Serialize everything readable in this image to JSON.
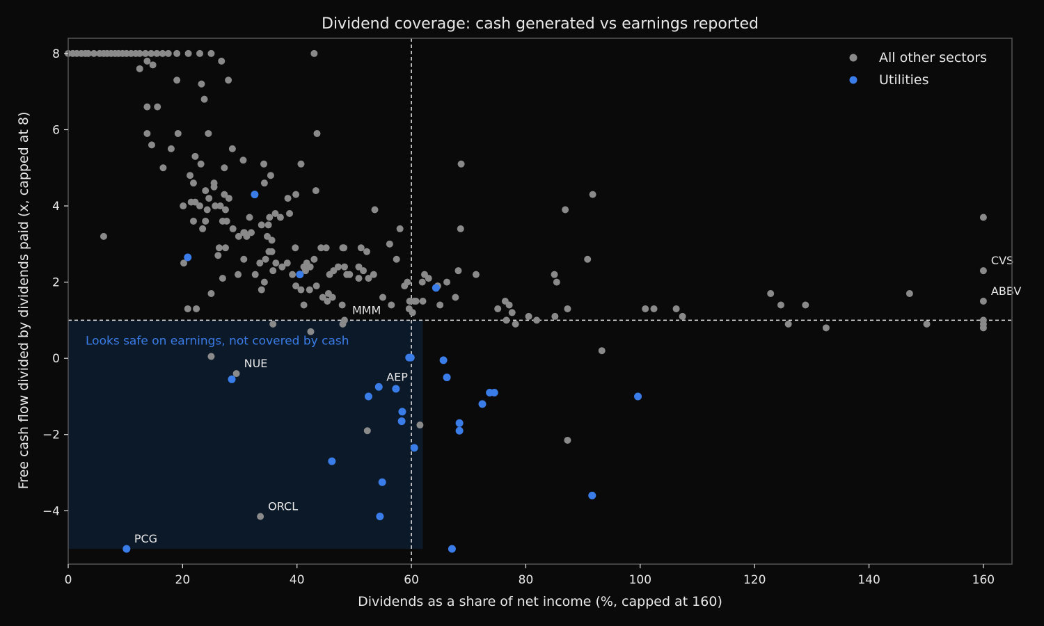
{
  "chart_data": {
    "type": "scatter",
    "title": "Dividend coverage: cash generated vs earnings reported",
    "xlabel": "Dividends as a share of net income (%, capped at 160)",
    "ylabel": "Free cash flow divided by dividends paid (x, capped at 8)",
    "xlim": [
      0,
      165
    ],
    "ylim": [
      -5.4,
      8.4
    ],
    "xticks": [
      0,
      20,
      40,
      60,
      80,
      100,
      120,
      140,
      160
    ],
    "yticks": [
      -4,
      -2,
      0,
      2,
      4,
      6,
      8
    ],
    "grid": false,
    "legend_position": "top-right",
    "reference_lines": {
      "x": 60,
      "y": 1
    },
    "highlight_zone": {
      "x": [
        0,
        62
      ],
      "y": [
        -5,
        1
      ],
      "label": "Looks safe on earnings, not covered by cash"
    },
    "colors": {
      "background": "#0a0a0a",
      "other": "#8a8a8a",
      "utilities": "#3b7de8",
      "zone": "#0d1a2b",
      "text": "#e8e8e8"
    },
    "series": [
      {
        "name": "All other sectors",
        "color": "#8a8a8a",
        "points": [
          [
            0,
            8
          ],
          [
            0.8,
            8
          ],
          [
            1.5,
            8
          ],
          [
            2.3,
            8
          ],
          [
            3,
            8
          ],
          [
            3.5,
            8
          ],
          [
            4.5,
            8
          ],
          [
            5.5,
            8
          ],
          [
            6.2,
            8
          ],
          [
            6.8,
            8
          ],
          [
            7.5,
            8
          ],
          [
            8.2,
            8
          ],
          [
            8.8,
            8
          ],
          [
            9.5,
            8
          ],
          [
            10.2,
            8
          ],
          [
            11,
            8
          ],
          [
            11.8,
            8
          ],
          [
            12.5,
            8
          ],
          [
            13.5,
            8
          ],
          [
            14.5,
            8
          ],
          [
            15.5,
            8
          ],
          [
            16.5,
            8
          ],
          [
            17.5,
            8
          ],
          [
            19,
            8
          ],
          [
            21,
            8
          ],
          [
            23,
            8
          ],
          [
            25,
            8
          ],
          [
            43,
            8
          ],
          [
            12.5,
            7.6
          ],
          [
            13.8,
            7.8
          ],
          [
            14.8,
            7.7
          ],
          [
            19,
            7.3
          ],
          [
            23.3,
            7.2
          ],
          [
            26.8,
            7.8
          ],
          [
            28,
            7.3
          ],
          [
            13.8,
            6.6
          ],
          [
            15.6,
            6.6
          ],
          [
            23.8,
            6.8
          ],
          [
            13.8,
            5.9
          ],
          [
            14.6,
            5.6
          ],
          [
            19.2,
            5.9
          ],
          [
            24.5,
            5.9
          ],
          [
            43.5,
            5.9
          ],
          [
            16.6,
            5
          ],
          [
            18,
            5.5
          ],
          [
            22.2,
            5.3
          ],
          [
            23.2,
            5.1
          ],
          [
            21.3,
            4.8
          ],
          [
            28.7,
            5.5
          ],
          [
            27.3,
            5
          ],
          [
            30.6,
            5.2
          ],
          [
            34.2,
            5.1
          ],
          [
            35.4,
            4.8
          ],
          [
            40.7,
            5.1
          ],
          [
            68.7,
            5.1
          ],
          [
            21.9,
            4.6
          ],
          [
            24,
            4.4
          ],
          [
            25.5,
            4.6
          ],
          [
            25.5,
            4.5
          ],
          [
            27.3,
            4.3
          ],
          [
            34.3,
            4.6
          ],
          [
            39.8,
            4.3
          ],
          [
            43.3,
            4.4
          ],
          [
            20.1,
            4
          ],
          [
            21.5,
            4.1
          ],
          [
            22.2,
            4.1
          ],
          [
            23,
            4
          ],
          [
            24.3,
            3.9
          ],
          [
            24.6,
            4.2
          ],
          [
            25.7,
            4
          ],
          [
            26.6,
            4
          ],
          [
            27.5,
            3.9
          ],
          [
            28.1,
            4.2
          ],
          [
            38.4,
            4.2
          ],
          [
            53.6,
            3.9
          ],
          [
            86.9,
            3.9
          ],
          [
            91.7,
            4.3
          ],
          [
            21.9,
            3.6
          ],
          [
            23.5,
            3.4
          ],
          [
            24,
            3.6
          ],
          [
            27,
            3.6
          ],
          [
            27.7,
            3.6
          ],
          [
            28.8,
            3.4
          ],
          [
            30.7,
            3.3
          ],
          [
            31.7,
            3.7
          ],
          [
            33.8,
            3.5
          ],
          [
            35,
            3.5
          ],
          [
            35.2,
            3.7
          ],
          [
            36.2,
            3.8
          ],
          [
            37.1,
            3.7
          ],
          [
            38.7,
            3.8
          ],
          [
            31.2,
            3.2
          ],
          [
            34.8,
            3.2
          ],
          [
            32,
            3.3
          ],
          [
            35.6,
            3.1
          ],
          [
            58,
            3.4
          ],
          [
            68.6,
            3.4
          ],
          [
            160,
            3.7
          ],
          [
            6.2,
            3.2
          ],
          [
            20.2,
            2.5
          ],
          [
            26.4,
            2.9
          ],
          [
            26.2,
            2.7
          ],
          [
            27.5,
            2.9
          ],
          [
            29.8,
            3.2
          ],
          [
            30.8,
            3.3
          ],
          [
            35.1,
            2.8
          ],
          [
            35.6,
            2.8
          ],
          [
            39.7,
            2.9
          ],
          [
            44.2,
            2.9
          ],
          [
            45.1,
            2.9
          ],
          [
            48,
            2.9
          ],
          [
            48.2,
            2.9
          ],
          [
            51.2,
            2.9
          ],
          [
            52.2,
            2.8
          ],
          [
            55,
            1.6
          ],
          [
            56.2,
            3
          ],
          [
            57.4,
            2.6
          ],
          [
            30.7,
            2.6
          ],
          [
            34.5,
            2.6
          ],
          [
            33.5,
            2.5
          ],
          [
            36.3,
            2.5
          ],
          [
            37.4,
            2.4
          ],
          [
            38.3,
            2.5
          ],
          [
            41.2,
            2.4
          ],
          [
            41.7,
            2.5
          ],
          [
            42.3,
            2.4
          ],
          [
            43,
            2.6
          ],
          [
            46.4,
            2.3
          ],
          [
            47.2,
            2.4
          ],
          [
            48.3,
            2.4
          ],
          [
            48.7,
            2.2
          ],
          [
            50.8,
            2.4
          ],
          [
            51.6,
            2.3
          ],
          [
            52.5,
            2.1
          ],
          [
            53.4,
            2.2
          ],
          [
            45.7,
            2.2
          ],
          [
            49.2,
            2.2
          ],
          [
            50.8,
            2.1
          ],
          [
            27,
            2.1
          ],
          [
            29.7,
            2.2
          ],
          [
            32.7,
            2.2
          ],
          [
            35.8,
            2.3
          ],
          [
            39.2,
            2.2
          ],
          [
            41.5,
            2.3
          ],
          [
            34.3,
            2
          ],
          [
            39.8,
            1.9
          ],
          [
            40.7,
            1.8
          ],
          [
            42.2,
            1.8
          ],
          [
            43.4,
            1.9
          ],
          [
            25,
            1.7
          ],
          [
            33.8,
            1.8
          ],
          [
            44.5,
            1.6
          ],
          [
            45.3,
            1.5
          ],
          [
            45.5,
            1.7
          ],
          [
            46.2,
            1.6
          ],
          [
            60.8,
            1.5
          ],
          [
            62,
            1.5
          ],
          [
            59.7,
            1.5
          ],
          [
            59.3,
            2
          ],
          [
            60.5,
            1.5
          ],
          [
            61.9,
            2
          ],
          [
            62.3,
            2.2
          ],
          [
            63,
            2.1
          ],
          [
            64.6,
            1.9
          ],
          [
            66.2,
            2
          ],
          [
            68.2,
            2.3
          ],
          [
            71.3,
            2.2
          ],
          [
            85,
            2.2
          ],
          [
            85.4,
            2
          ],
          [
            90.8,
            2.6
          ],
          [
            160,
            2.3
          ],
          [
            67.7,
            1.6
          ],
          [
            58.8,
            1.9
          ],
          [
            59.6,
            1.3
          ],
          [
            60.2,
            1.2
          ],
          [
            41.2,
            1.4
          ],
          [
            56.5,
            1.4
          ],
          [
            47.9,
            1.4
          ],
          [
            65,
            1.4
          ],
          [
            75.1,
            1.3
          ],
          [
            76.4,
            1.5
          ],
          [
            77.1,
            1.4
          ],
          [
            77.6,
            1.2
          ],
          [
            80.5,
            1.1
          ],
          [
            81.9,
            1
          ],
          [
            85.1,
            1.1
          ],
          [
            87.3,
            1.3
          ],
          [
            100.9,
            1.3
          ],
          [
            102.4,
            1.3
          ],
          [
            106.3,
            1.3
          ],
          [
            107.4,
            1.1
          ],
          [
            122.8,
            1.7
          ],
          [
            124.6,
            1.4
          ],
          [
            128.9,
            1.4
          ],
          [
            147.1,
            1.7
          ],
          [
            160,
            1.5
          ],
          [
            20.9,
            1.3
          ],
          [
            22.4,
            1.3
          ],
          [
            76.6,
            1
          ],
          [
            78.2,
            0.9
          ],
          [
            125.9,
            0.9
          ],
          [
            132.5,
            0.8
          ],
          [
            150.1,
            0.9
          ],
          [
            160,
            0.9
          ],
          [
            160,
            0.8
          ],
          [
            160,
            1
          ],
          [
            35.8,
            0.9
          ],
          [
            42.4,
            0.7
          ],
          [
            48,
            0.9
          ],
          [
            48.3,
            1
          ],
          [
            93.3,
            0.2
          ],
          [
            25,
            0.05
          ],
          [
            29.4,
            -0.4
          ],
          [
            61.5,
            -1.75
          ],
          [
            52.3,
            -1.9
          ],
          [
            87.3,
            -2.15
          ],
          [
            33.6,
            -4.15
          ]
        ]
      },
      {
        "name": "Utilities",
        "color": "#3b7de8",
        "points": [
          [
            32.6,
            4.3
          ],
          [
            20.9,
            2.65
          ],
          [
            40.5,
            2.2
          ],
          [
            64.3,
            1.85
          ],
          [
            59.6,
            0.02
          ],
          [
            59.9,
            0.02
          ],
          [
            65.6,
            -0.05
          ],
          [
            28.6,
            -0.55
          ],
          [
            66.2,
            -0.5
          ],
          [
            54.3,
            -0.75
          ],
          [
            57.3,
            -0.8
          ],
          [
            52.5,
            -1
          ],
          [
            73.7,
            -0.9
          ],
          [
            74.5,
            -0.9
          ],
          [
            99.6,
            -1
          ],
          [
            72.4,
            -1.2
          ],
          [
            58.4,
            -1.4
          ],
          [
            58.3,
            -1.65
          ],
          [
            68.4,
            -1.7
          ],
          [
            68.4,
            -1.9
          ],
          [
            60.5,
            -2.35
          ],
          [
            46.1,
            -2.7
          ],
          [
            54.9,
            -3.25
          ],
          [
            91.6,
            -3.6
          ],
          [
            54.5,
            -4.15
          ],
          [
            10.2,
            -5
          ],
          [
            67.1,
            -5
          ]
        ]
      }
    ],
    "annotations": [
      {
        "text": "CVS",
        "x": 160,
        "y": 2.3
      },
      {
        "text": "ABBV",
        "x": 160,
        "y": 1.5
      },
      {
        "text": "MMM",
        "x": 48.3,
        "y": 1
      },
      {
        "text": "NUE",
        "x": 29.4,
        "y": -0.4
      },
      {
        "text": "AEP",
        "x": 54.3,
        "y": -0.75
      },
      {
        "text": "ORCL",
        "x": 33.6,
        "y": -4.15
      },
      {
        "text": "PCG",
        "x": 10.2,
        "y": -5
      }
    ]
  }
}
